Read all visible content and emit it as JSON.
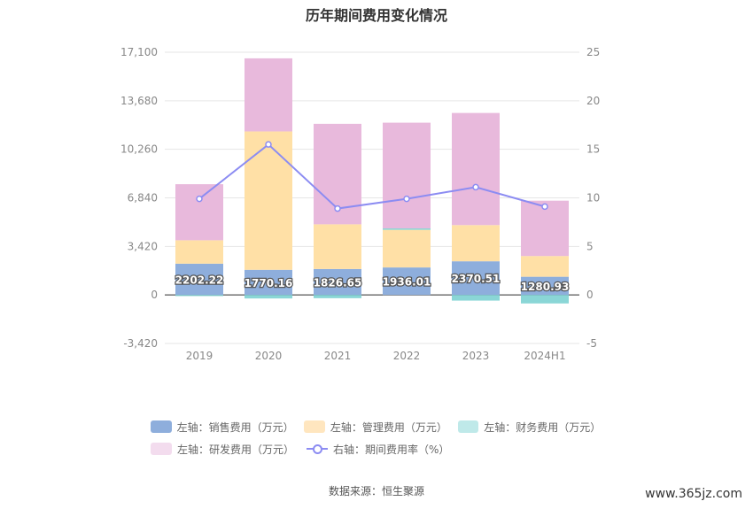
{
  "chart_data": {
    "type": "bar",
    "title": "历年期间费用变化情况",
    "categories": [
      "2019",
      "2020",
      "2021",
      "2022",
      "2023",
      "2024H1"
    ],
    "series": [
      {
        "name": "左轴：销售费用（万元）",
        "color": "#8eaedc",
        "values": [
          2202.22,
          1770.16,
          1826.65,
          1936.01,
          2370.51,
          1280.93
        ]
      },
      {
        "name": "左轴：管理费用（万元）",
        "color": "#ffe0a6",
        "values": [
          1650,
          9750,
          3150,
          2650,
          2550,
          1460
        ]
      },
      {
        "name": "左轴：财务费用（万元）",
        "color": "#8ad6d6",
        "values": [
          -80,
          -250,
          -230,
          100,
          -400,
          -600
        ]
      },
      {
        "name": "左轴：研发费用（万元）",
        "color": "#e8b9dc",
        "values": [
          3950,
          5150,
          7080,
          7450,
          7900,
          3900
        ]
      },
      {
        "name": "右轴：期间费用率（%）",
        "color": "#8c8cf2",
        "type": "line",
        "axis": "right",
        "values": [
          9.9,
          15.5,
          8.9,
          9.9,
          11.1,
          9.1
        ]
      }
    ],
    "data_labels": [
      "2202.22",
      "1770.16",
      "1826.65",
      "1936.01",
      "2370.51",
      "1280.93"
    ],
    "y_left": {
      "ticks": [
        "17,100",
        "13,680",
        "10,260",
        "6,840",
        "3,420",
        "0",
        "-3,420"
      ],
      "range": [
        -3420,
        17100
      ]
    },
    "y_right": {
      "ticks": [
        "25",
        "20",
        "15",
        "10",
        "5",
        "0",
        "-5"
      ],
      "range": [
        -5,
        25
      ]
    },
    "grid": true,
    "legend_placement": "bottom"
  },
  "legend": {
    "row1": [
      "左轴：销售费用（万元）",
      "左轴：管理费用（万元）",
      "左轴：财务费用（万元）"
    ],
    "row2": [
      "左轴：研发费用（万元）",
      "右轴：期间费用率（%）"
    ]
  },
  "source": "数据来源：恒生聚源",
  "watermark": "www.365jz.com"
}
